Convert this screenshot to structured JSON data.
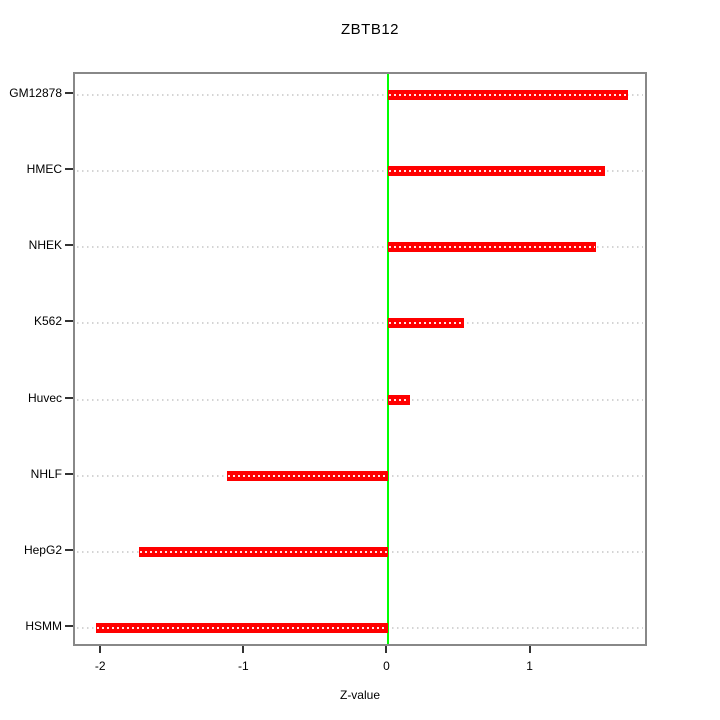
{
  "figure": {
    "background": "#FFFFFF"
  },
  "chart_data": {
    "type": "bar",
    "orientation": "horizontal",
    "title": "ZBTB12",
    "xlabel": "Z-value",
    "ylabel": "",
    "categories": [
      "GM12878",
      "HMEC",
      "NHEK",
      "K562",
      "Huvec",
      "NHLF",
      "HepG2",
      "HSMM"
    ],
    "values": [
      1.67,
      1.51,
      1.45,
      0.53,
      0.15,
      -1.13,
      -1.74,
      -2.04
    ],
    "baseline": 0,
    "xlim": [
      -2.19,
      1.82
    ],
    "xticks": [
      -2,
      -1,
      0,
      1
    ],
    "xtick_labels": [
      "-2",
      "-1",
      "0",
      "1"
    ],
    "grid": "dotted-horizontal-guides",
    "legend": "none",
    "colors": {
      "bar": "#FF0000",
      "bar_dash": "#FFFFFF",
      "zero_line": "#00FF00",
      "frame": "#888888",
      "grid_line": "#D3D3D3",
      "text": "#000000"
    }
  }
}
